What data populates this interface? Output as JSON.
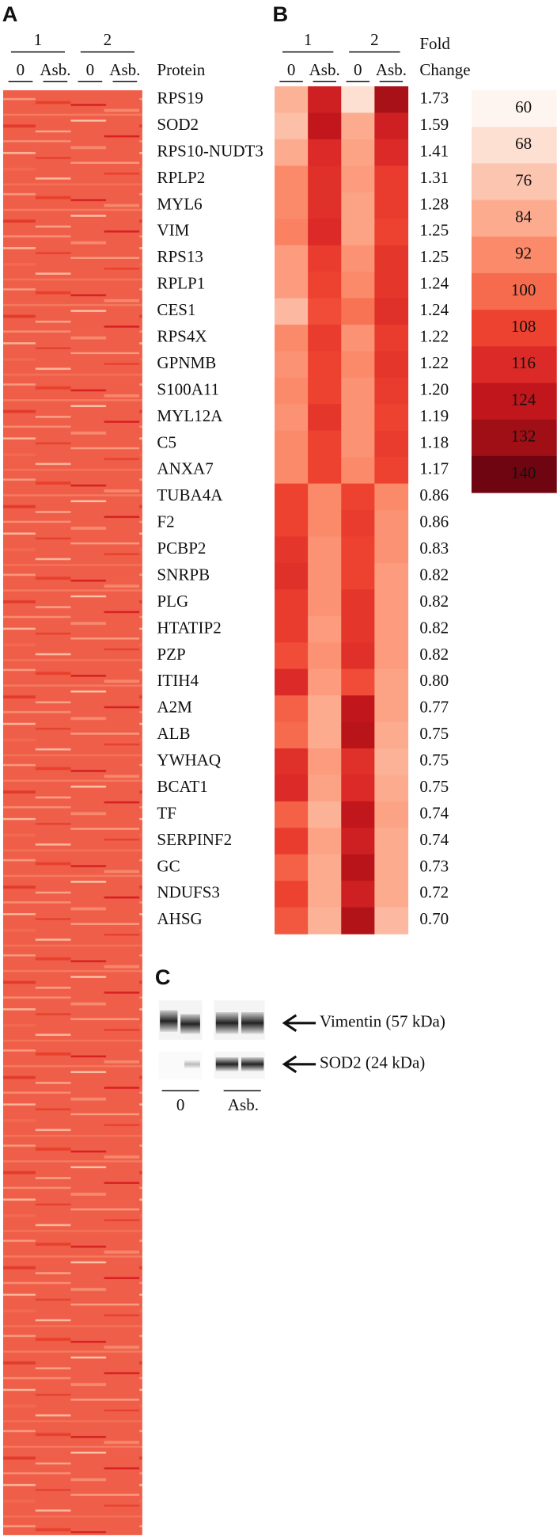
{
  "panel_a": {
    "label": "A",
    "groups": [
      {
        "label": "1",
        "columns": [
          "0",
          "Asb."
        ]
      },
      {
        "label": "2",
        "columns": [
          "0",
          "Asb."
        ]
      }
    ],
    "protein_header": "Protein"
  },
  "panel_b": {
    "label": "B",
    "groups": [
      {
        "label": "1",
        "columns": [
          "0",
          "Asb."
        ]
      },
      {
        "label": "2",
        "columns": [
          "0",
          "Asb."
        ]
      }
    ],
    "fold_header": [
      "Fold",
      "Change"
    ],
    "proteins": [
      "RPS19",
      "SOD2",
      "RPS10-NUDT3",
      "RPLP2",
      "MYL6",
      "VIM",
      "RPS13",
      "RPLP1",
      "CES1",
      "RPS4X",
      "GPNMB",
      "S100A11",
      "MYL12A",
      "C5",
      "ANXA7",
      "TUBA4A",
      "F2",
      "PCBP2",
      "SNRPB",
      "PLG",
      "HTATIP2",
      "PZP",
      "ITIH4",
      "A2M",
      "ALB",
      "YWHAQ",
      "BCAT1",
      "TF",
      "SERPINF2",
      "GC",
      "NDUFS3",
      "AHSG"
    ],
    "fold_change": [
      "1.73",
      "1.59",
      "1.41",
      "1.31",
      "1.28",
      "1.25",
      "1.25",
      "1.24",
      "1.24",
      "1.22",
      "1.22",
      "1.20",
      "1.19",
      "1.18",
      "1.17",
      "0.86",
      "0.86",
      "0.83",
      "0.82",
      "0.82",
      "0.82",
      "0.82",
      "0.80",
      "0.77",
      "0.75",
      "0.75",
      "0.75",
      "0.74",
      "0.74",
      "0.73",
      "0.72",
      "0.70"
    ],
    "values": [
      [
        82,
        120,
        68,
        130
      ],
      [
        78,
        124,
        84,
        120
      ],
      [
        84,
        116,
        86,
        116
      ],
      [
        92,
        114,
        88,
        110
      ],
      [
        92,
        114,
        86,
        110
      ],
      [
        94,
        116,
        86,
        108
      ],
      [
        88,
        110,
        90,
        112
      ],
      [
        88,
        108,
        92,
        112
      ],
      [
        80,
        106,
        98,
        114
      ],
      [
        92,
        110,
        90,
        110
      ],
      [
        90,
        108,
        92,
        112
      ],
      [
        92,
        108,
        90,
        110
      ],
      [
        90,
        112,
        90,
        108
      ],
      [
        92,
        108,
        90,
        110
      ],
      [
        92,
        108,
        92,
        108
      ],
      [
        108,
        92,
        108,
        92
      ],
      [
        108,
        92,
        110,
        90
      ],
      [
        112,
        90,
        108,
        90
      ],
      [
        114,
        90,
        108,
        88
      ],
      [
        110,
        90,
        112,
        88
      ],
      [
        110,
        88,
        112,
        88
      ],
      [
        106,
        90,
        114,
        88
      ],
      [
        116,
        88,
        106,
        86
      ],
      [
        102,
        84,
        124,
        86
      ],
      [
        100,
        84,
        126,
        84
      ],
      [
        114,
        88,
        114,
        82
      ],
      [
        116,
        86,
        116,
        84
      ],
      [
        102,
        82,
        124,
        86
      ],
      [
        110,
        86,
        120,
        84
      ],
      [
        102,
        84,
        126,
        84
      ],
      [
        108,
        84,
        120,
        84
      ],
      [
        104,
        82,
        128,
        80
      ]
    ],
    "colorscale": {
      "ticks": [
        60,
        68,
        76,
        84,
        92,
        100,
        108,
        116,
        124,
        132,
        140
      ],
      "colors": [
        "#fff5f0",
        "#fee0d2",
        "#fcc5b0",
        "#fcab8f",
        "#fb8a6a",
        "#f66b4d",
        "#ee4231",
        "#db2a27",
        "#c1161c",
        "#a00f15",
        "#6e0510"
      ]
    }
  },
  "panel_c": {
    "label": "C",
    "bands": [
      "Vimentin (57 kDa)",
      "SOD2 (24 kDa)"
    ],
    "lanes": [
      "0",
      "Asb."
    ]
  }
}
